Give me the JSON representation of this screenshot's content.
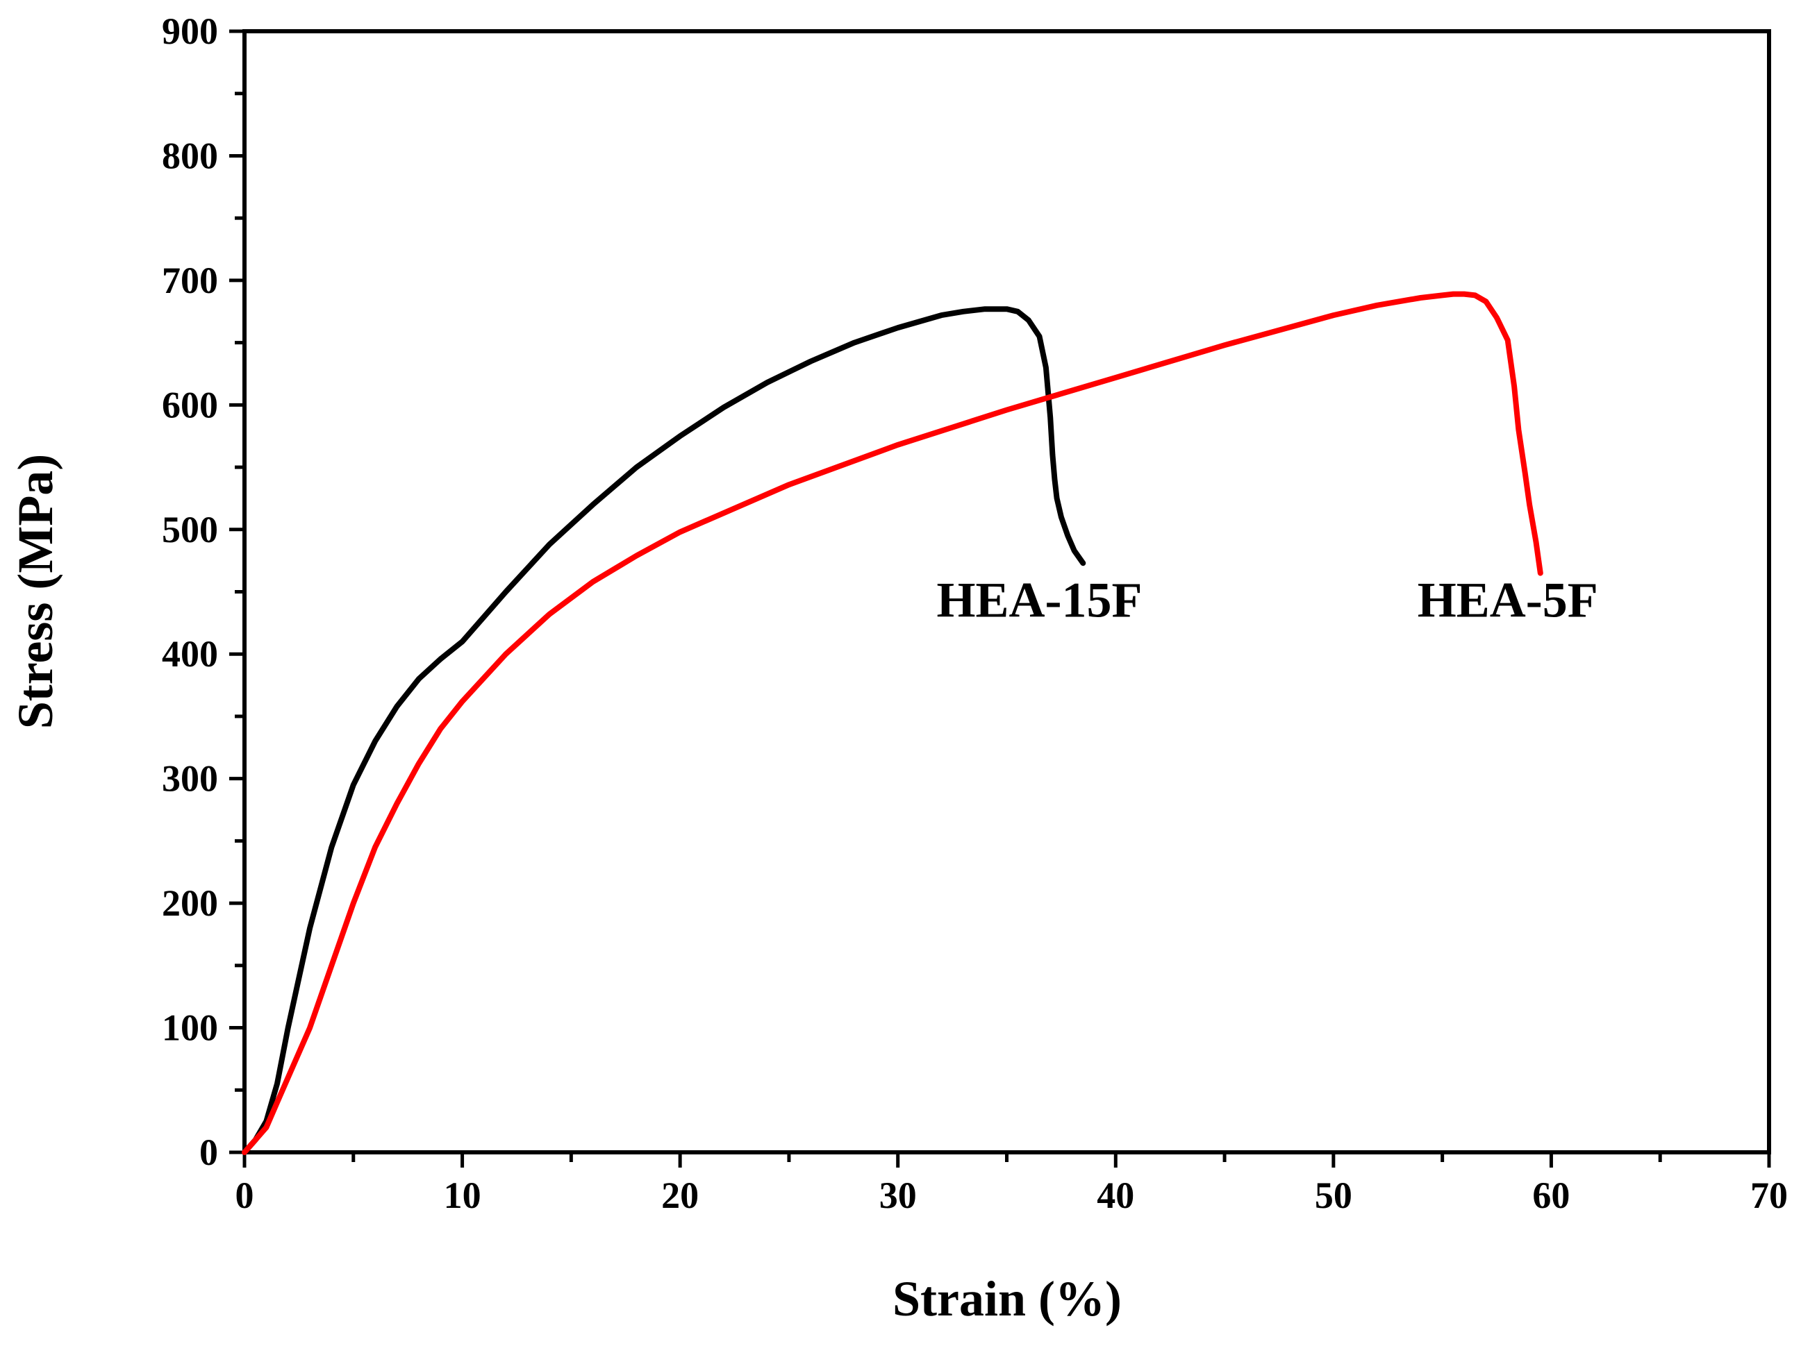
{
  "chart_data": {
    "type": "line",
    "title": "",
    "xlabel": "Strain (%)",
    "ylabel": "Stress (MPa)",
    "xlim": [
      0,
      70
    ],
    "ylim": [
      0,
      900
    ],
    "xticks": [
      0,
      10,
      20,
      30,
      40,
      50,
      60,
      70
    ],
    "yticks": [
      0,
      100,
      200,
      300,
      400,
      500,
      600,
      700,
      800,
      900
    ],
    "x_minor_step": 5,
    "y_minor_step": 50,
    "grid": false,
    "legend": "none",
    "series": [
      {
        "name": "HEA-15F",
        "color": "#000000",
        "x": [
          0,
          0.5,
          1,
          1.5,
          2,
          3,
          4,
          5,
          6,
          7,
          8,
          9,
          10,
          12,
          14,
          16,
          18,
          20,
          22,
          24,
          26,
          28,
          30,
          32,
          33,
          34,
          35,
          35.5,
          36,
          36.5,
          36.8,
          37,
          37.1,
          37.2,
          37.3,
          37.5,
          37.8,
          38.1,
          38.5
        ],
        "y": [
          0,
          10,
          25,
          55,
          100,
          180,
          245,
          295,
          330,
          358,
          380,
          396,
          410,
          450,
          488,
          520,
          550,
          575,
          598,
          618,
          635,
          650,
          662,
          672,
          675,
          677,
          677,
          675,
          668,
          655,
          630,
          590,
          560,
          540,
          525,
          510,
          495,
          483,
          473
        ]
      },
      {
        "name": "HEA-5F",
        "color": "#ff0000",
        "x": [
          0,
          0.5,
          1,
          1.5,
          2,
          3,
          4,
          5,
          6,
          7,
          8,
          9,
          10,
          12,
          14,
          16,
          18,
          20,
          25,
          30,
          35,
          40,
          45,
          50,
          52,
          54,
          55,
          55.5,
          56,
          56.5,
          57,
          57.5,
          58,
          58.3,
          58.5,
          58.8,
          59,
          59.3,
          59.5
        ],
        "y": [
          0,
          10,
          20,
          40,
          60,
          100,
          150,
          200,
          245,
          280,
          312,
          340,
          362,
          400,
          432,
          458,
          479,
          498,
          536,
          568,
          596,
          622,
          648,
          672,
          680,
          686,
          688,
          689,
          689,
          688,
          683,
          670,
          652,
          615,
          580,
          545,
          520,
          490,
          465
        ]
      }
    ],
    "annotations": [
      {
        "text": "HEA-15F",
        "x": 36.5,
        "y": 430
      },
      {
        "text": "HEA-5F",
        "x": 58,
        "y": 430
      }
    ]
  }
}
